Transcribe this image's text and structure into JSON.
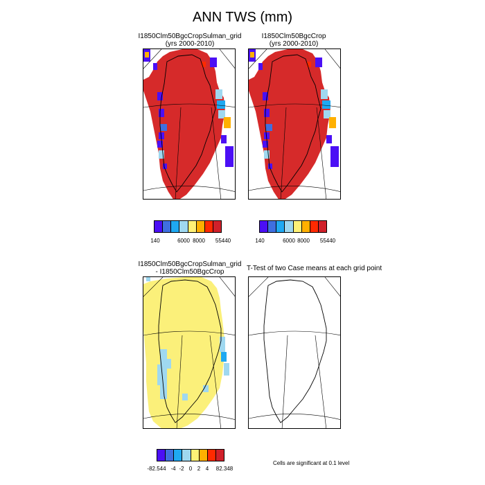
{
  "title": "ANN TWS (mm)",
  "panels": {
    "case1": {
      "title": "I1850Clm50BgcCropSulman_grid",
      "subtitle": "(yrs 2000-2010)"
    },
    "case2": {
      "title": "I1850Clm50BgcCrop",
      "subtitle": "(yrs 2000-2010)"
    },
    "diff": {
      "title": "I1850Clm50BgcCropSulman_grid",
      "subtitle": "- I1850Clm50BgcCrop"
    },
    "ttest": {
      "title": "T-Test of two Case means at each grid point"
    }
  },
  "colorbars": {
    "case": {
      "colors": [
        "#4b0ff5",
        "#3f6fe0",
        "#1fa9f2",
        "#9fd8f0",
        "#fff176",
        "#ffb000",
        "#ff2a00",
        "#d0202a"
      ],
      "labels": [
        "140",
        "6000",
        "8000",
        "55440"
      ]
    },
    "diff": {
      "colors": [
        "#4b0ff5",
        "#3f6fe0",
        "#1fa9f2",
        "#9fd8f0",
        "#fff176",
        "#ffb000",
        "#ff2a00",
        "#d0202a"
      ],
      "labels": [
        "-82.544",
        "-4",
        "-2",
        "0",
        "2",
        "4",
        "82.348"
      ]
    }
  },
  "significance_note": "Cells are significant at 0.1 level",
  "map_legend_colors": {
    "red": "#d62a2a",
    "yellow": "#fbf07a",
    "light_blue": "#9fd8f0",
    "blue": "#4b0ff5",
    "orange": "#ff8c00"
  }
}
